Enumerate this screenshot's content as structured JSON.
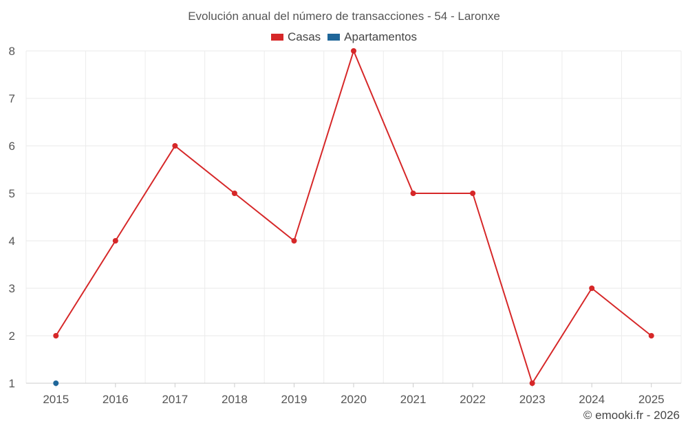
{
  "chart_data": {
    "type": "line",
    "title": "Evolución anual del número de transacciones - 54 - Laronxe",
    "categories": [
      "2015",
      "2016",
      "2017",
      "2018",
      "2019",
      "2020",
      "2021",
      "2022",
      "2023",
      "2024",
      "2025"
    ],
    "series": [
      {
        "name": "Casas",
        "color": "#d62728",
        "values": [
          2,
          4,
          6,
          5,
          4,
          8,
          5,
          5,
          1,
          3,
          2
        ]
      },
      {
        "name": "Apartamentos",
        "color": "#1f6699",
        "values": [
          1,
          null,
          null,
          null,
          null,
          null,
          null,
          null,
          null,
          null,
          null
        ]
      }
    ],
    "yticks": [
      1,
      2,
      3,
      4,
      5,
      6,
      7,
      8
    ],
    "ylim": [
      1,
      8
    ],
    "xlabel": "",
    "ylabel": "",
    "grid": true,
    "legend_position": "top-center"
  },
  "footer": {
    "copyright": "© emooki.fr - 2026"
  }
}
